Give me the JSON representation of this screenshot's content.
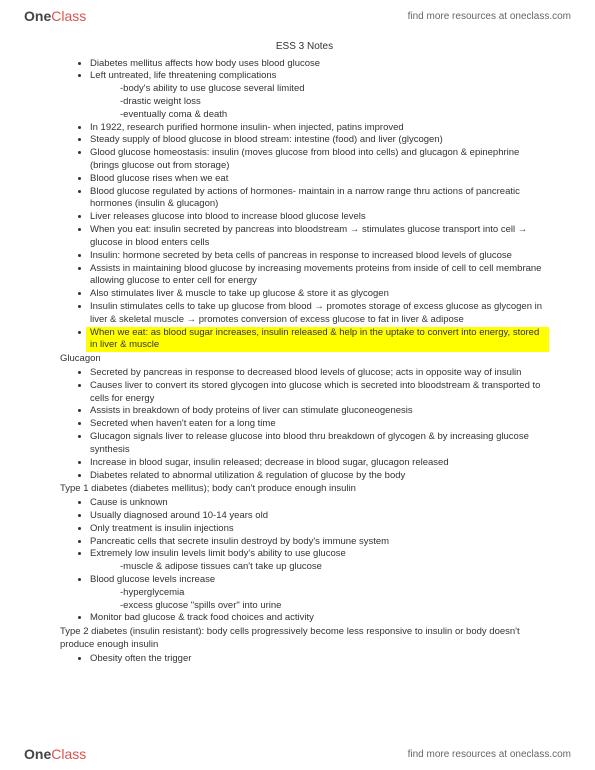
{
  "brand": {
    "part1": "One",
    "part2": "Class"
  },
  "header_link": "find more resources at oneclass.com",
  "footer_link": "find more resources at oneclass.com",
  "title": "ESS 3 Notes",
  "section1": {
    "items": [
      "Diabetes mellitus affects how body uses blood glucose",
      "Left untreated, life threatening complications",
      "In 1922, research purified hormone insulin- when injected, patins improved",
      "Steady supply of blood glucose in blood stream: intestine (food) and liver (glycogen)",
      "Glood glucose homeostasis: insulin (moves glucose from blood into cells) and glucagon & epinephrine (brings glucose out from storage)",
      "Blood glucose rises when we eat",
      "Blood glucose regulated by actions of hormones- maintain in a narrow range thru actions of pancreatic hormones (insulin & glucagon)",
      "Liver releases glucose into blood to increase blood glucose levels",
      "When you eat: insulin secreted by pancreas into bloodstream → stimulates glucose transport into cell → glucose in blood enters cells",
      "Insulin: hormone secreted by beta cells of pancreas in response to increased blood levels of glucose",
      "Assists in maintaining blood glucose by increasing movements proteins from inside of cell to cell membrane allowing glucose to enter cell for energy",
      "Also stimulates liver & muscle to take up glucose & store it as glycogen",
      "Insulin stimulates cells to take up glucose from blood → promotes storage of excess glucose as glycogen in liver & skeletal muscle → promotes conversion of excess glucose to fat in liver & adipose"
    ],
    "item1_subs": [
      "-body's ability to use glucose several limited",
      "-drastic weight loss",
      "-eventually coma & death"
    ],
    "highlight": "When we eat: as blood sugar increases, insulin released & help in the uptake to convert into energy, stored in liver & muscle"
  },
  "glucagon": {
    "label": "Glucagon",
    "items": [
      "Secreted by pancreas in response to decreased blood levels of glucose; acts in opposite way of insulin",
      "Causes liver to convert its stored glycogen into glucose which is secreted into bloodstream & transported to cells for energy",
      "Assists in breakdown of body proteins of liver can stimulate gluconeogenesis",
      "Secreted when haven't eaten for a long time",
      "Glucagon signals liver to release glucose into blood thru breakdown of glycogen & by increasing glucose synthesis",
      "Increase in blood sugar, insulin released; decrease in blood sugar,  glucagon released",
      "Diabetes related to abnormal utilization & regulation of glucose by the body"
    ]
  },
  "type1": {
    "label": "Type 1 diabetes (diabetes mellitus); body can't produce enough insulin",
    "items": [
      "Cause is unknown",
      "Usually diagnosed around 10-14 years old",
      "Only treatment is insulin injections",
      "Pancreatic cells that secrete insulin destroyd by body's immune system",
      "Extremely low insulin levels limit body's ability to use glucose",
      "Blood glucose levels increase",
      "Monitor bad glucose & track food choices and activity"
    ],
    "item4_sub": "-muscle & adipose tissues can't take up glucose",
    "item5_subs": [
      "-hyperglycemia",
      "-excess glucose \"spills over\" into urine"
    ]
  },
  "type2": {
    "label": "Type 2 diabetes (insulin resistant): body cells progressively become less responsive to insulin or body doesn't produce enough insulin",
    "items": [
      "Obesity often the trigger"
    ]
  }
}
